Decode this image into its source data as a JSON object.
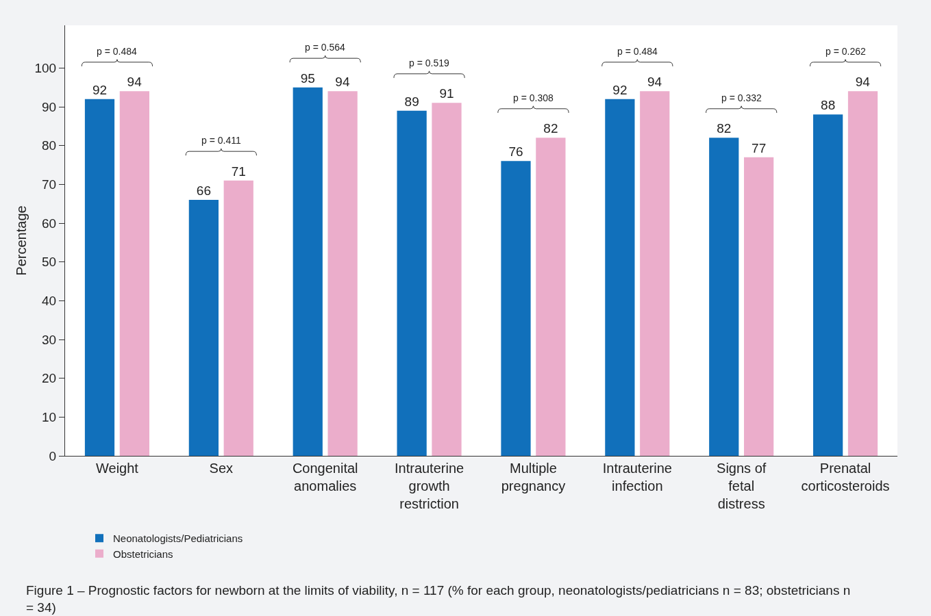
{
  "chart_data": {
    "type": "bar",
    "ylabel": "Percentage",
    "categories": [
      "Weight",
      "Sex",
      "Congenital anomalies",
      "Intrauterine growth restriction",
      "Multiple pregnancy",
      "Intrauterine infection",
      "Signs of fetal distress",
      "Prenatal corticosteroids"
    ],
    "series": [
      {
        "name": "Neonatologists/Pediatricians",
        "color": "#1170bb",
        "values": [
          92,
          66,
          95,
          89,
          76,
          92,
          82,
          88
        ]
      },
      {
        "name": "Obstetricians",
        "color": "#ebadcb",
        "values": [
          94,
          71,
          94,
          91,
          82,
          94,
          77,
          94
        ]
      }
    ],
    "ylim": [
      0,
      111
    ],
    "yticks": [
      0,
      10,
      20,
      30,
      40,
      50,
      60,
      70,
      80,
      90,
      100
    ],
    "grid": false,
    "legend": "bottom left",
    "data_labels": true,
    "annotations": [
      "p = 0.484",
      "p = 0.411",
      "p = 0.564",
      "p = 0.519",
      "p = 0.308",
      "p = 0.484",
      "p = 0.332",
      "p = 0.262",
      "Figure 1 – Prognostic factors for newborn at the limits of viability, n = 117 (% for each group, neonatologists/pediatricians n = 83; obstetricians n = 34)"
    ]
  }
}
